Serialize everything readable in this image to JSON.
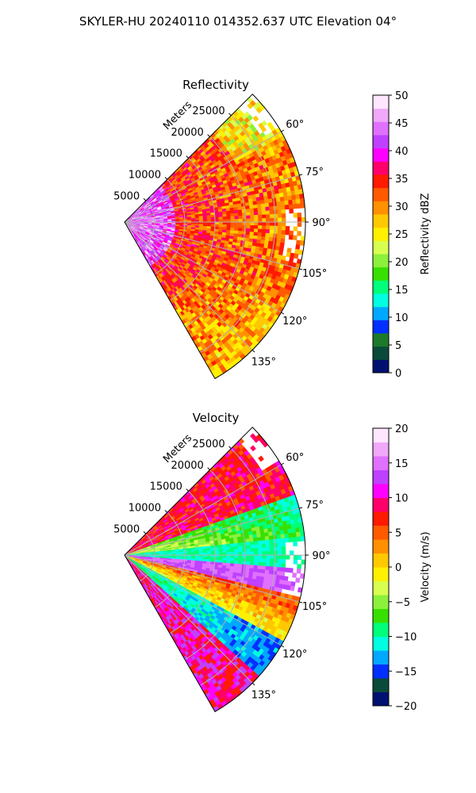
{
  "figure_title": "SKYLER-HU  20240110  014352.637 UTC Elevation 04°",
  "chart_data": [
    {
      "type": "heatmap",
      "projection": "polar-sector",
      "title": "Reflectivity",
      "azimuth_range_deg": [
        45,
        150
      ],
      "azimuth_ticks": [
        "60°",
        "75°",
        "90°",
        "105°",
        "120°",
        "135°"
      ],
      "azimuth_tick_values": [
        60,
        75,
        90,
        105,
        120,
        135
      ],
      "radial_label": "Meters",
      "radial_ticks": [
        "5000",
        "10000",
        "15000",
        "20000",
        "25000"
      ],
      "radial_tick_values": [
        5000,
        10000,
        15000,
        20000,
        25000
      ],
      "range_max_m": 30000,
      "grid": true,
      "colorbar": {
        "label": "Reflectivity dBZ",
        "range": [
          0,
          50
        ],
        "ticks": [
          "0",
          "5",
          "10",
          "15",
          "20",
          "25",
          "30",
          "35",
          "40",
          "45",
          "50"
        ],
        "colormap": [
          "#001070",
          "#0a4a3a",
          "#1c7a2a",
          "#0030ff",
          "#00a8ff",
          "#00ffe0",
          "#00ff7a",
          "#37e000",
          "#8cf03c",
          "#d8ff50",
          "#fff000",
          "#ffc800",
          "#ff9000",
          "#ff5a00",
          "#ff1a00",
          "#ff006a",
          "#ff00ff",
          "#c040ff",
          "#e070ff",
          "#f0a8f8",
          "#ffe6ff"
        ]
      }
    },
    {
      "type": "heatmap",
      "projection": "polar-sector",
      "title": "Velocity",
      "azimuth_range_deg": [
        45,
        150
      ],
      "azimuth_ticks": [
        "60°",
        "75°",
        "90°",
        "105°",
        "120°",
        "135°"
      ],
      "azimuth_tick_values": [
        60,
        75,
        90,
        105,
        120,
        135
      ],
      "radial_label": "Meters",
      "radial_ticks": [
        "5000",
        "10000",
        "15000",
        "20000",
        "25000"
      ],
      "radial_tick_values": [
        5000,
        10000,
        15000,
        20000,
        25000
      ],
      "range_max_m": 30000,
      "grid": true,
      "colorbar": {
        "label": "Velocity (m/s)",
        "range": [
          -20,
          20
        ],
        "ticks": [
          "−20",
          "−15",
          "−10",
          "−5",
          "0",
          "5",
          "10",
          "15",
          "20"
        ],
        "colormap": [
          "#001070",
          "#0a4a3a",
          "#0030ff",
          "#00a8ff",
          "#00ffe0",
          "#00ff7a",
          "#37e000",
          "#8cf03c",
          "#d8ff50",
          "#fff000",
          "#ffc800",
          "#ff9000",
          "#ff5a00",
          "#ff1a00",
          "#ff006a",
          "#ff00ff",
          "#c040ff",
          "#e070ff",
          "#f0a8f8",
          "#ffe6ff"
        ]
      }
    }
  ]
}
